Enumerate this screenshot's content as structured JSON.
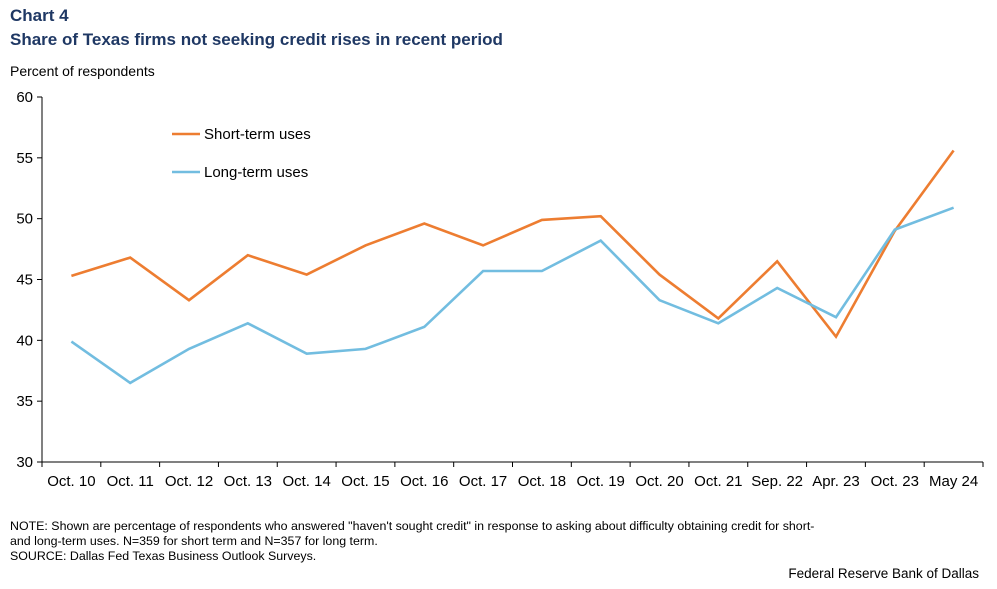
{
  "header": {
    "chart_number": "Chart 4",
    "title": "Share of Texas firms not seeking credit rises in recent period"
  },
  "y_axis_label": "Percent of respondents",
  "footnotes": {
    "note_line1": "NOTE: Shown are percentage of respondents who answered \"haven't sought credit\" in response to asking about difficulty obtaining credit for short-",
    "note_line2": "and long-term uses. N=359 for short term and N=357 for long term.",
    "source": "SOURCE: Dallas Fed Texas Business Outlook Surveys."
  },
  "credit": "Federal Reserve Bank of Dallas",
  "chart_data": {
    "type": "line",
    "categories": [
      "Oct. 10",
      "Oct. 11",
      "Oct. 12",
      "Oct. 13",
      "Oct. 14",
      "Oct. 15",
      "Oct. 16",
      "Oct. 17",
      "Oct. 18",
      "Oct. 19",
      "Oct. 20",
      "Oct. 21",
      "Sep. 22",
      "Apr. 23",
      "Oct. 23",
      "May 24"
    ],
    "series": [
      {
        "name": "Short-term uses",
        "color": "#ed7d31",
        "values": [
          45.3,
          46.8,
          43.3,
          47.0,
          45.4,
          47.8,
          49.6,
          47.8,
          49.9,
          50.2,
          45.4,
          41.8,
          46.5,
          40.3,
          49.0,
          55.6
        ]
      },
      {
        "name": "Long-term uses",
        "color": "#72bde0",
        "values": [
          39.9,
          36.5,
          39.3,
          41.4,
          38.9,
          39.3,
          41.1,
          45.7,
          45.7,
          48.2,
          43.3,
          41.4,
          44.3,
          41.9,
          49.1,
          50.9
        ]
      }
    ],
    "ylim": [
      30,
      60
    ],
    "yticks": [
      30,
      35,
      40,
      45,
      50,
      55,
      60
    ],
    "legend_position": "top-left",
    "grid": false
  }
}
